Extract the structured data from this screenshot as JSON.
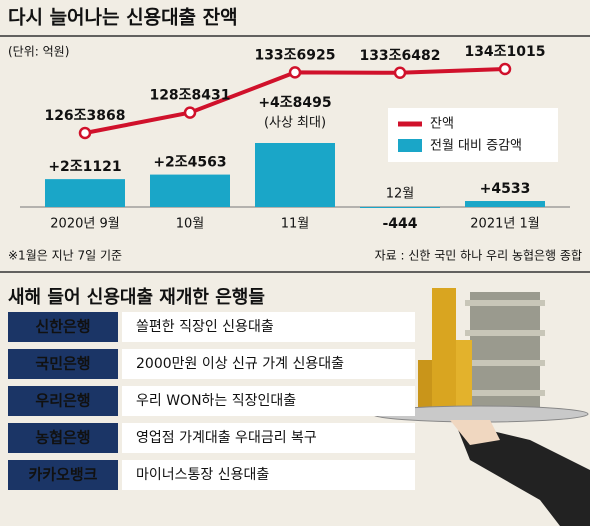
{
  "chart_data": {
    "type": "combo",
    "title": "다시 늘어나는 신용대출 잔액",
    "subtitle": "(단위: 억원)",
    "categories": [
      "2020년 9월",
      "10월",
      "11월",
      "12월",
      "2021년 1월"
    ],
    "series": [
      {
        "name": "잔액",
        "type": "line",
        "color": "#d0112b",
        "values": [
          1263868,
          1288431,
          1336925,
          1336482,
          1341015
        ],
        "value_labels": [
          "126조3868",
          "128조8431",
          "133조6925",
          "133조6482",
          "134조1015"
        ]
      },
      {
        "name": "전월 대비 증감액",
        "type": "bar",
        "color": "#1aa6c8",
        "values": [
          21121,
          24563,
          48495,
          -444,
          4533
        ],
        "value_labels": [
          "+2조1121",
          "+2조4563",
          "+4조8495",
          "-444",
          "+4533"
        ]
      }
    ],
    "annotation": "(사상 최대)",
    "note": "※1월은 지난 7일 기준",
    "source": "자료 : 신한 국민 하나 우리 농협은행 종합"
  },
  "table": {
    "title": "새해 들어 신용대출 재개한 은행들",
    "rows": [
      [
        "신한은행",
        "쏠편한 직장인 신용대출"
      ],
      [
        "국민은행",
        "2000만원 이상 신규 가계 신용대출"
      ],
      [
        "우리은행",
        "우리 WON하는 직장인대출"
      ],
      [
        "농협은행",
        "영업점 가계대출 우대금리 복구"
      ],
      [
        "카카오뱅크",
        "마이너스통장 신용대출"
      ]
    ]
  }
}
